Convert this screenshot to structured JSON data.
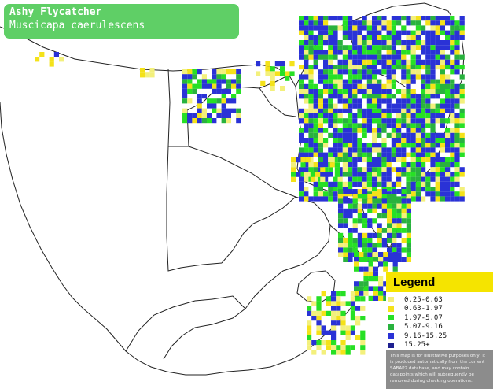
{
  "title": {
    "common_name": "Ashy Flycatcher",
    "scientific_name": "Muscicapa caerulescens"
  },
  "legend": {
    "heading": "Legend",
    "items": [
      {
        "label": "0.25-0.63",
        "color": "#f3f07c"
      },
      {
        "label": "0.63-1.97",
        "color": "#f4e219"
      },
      {
        "label": "1.97-5.07",
        "color": "#27e025"
      },
      {
        "label": "5.07-9.16",
        "color": "#29b23e"
      },
      {
        "label": "9.16-15.25",
        "color": "#2a32d6"
      },
      {
        "label": "15.25+",
        "color": "#1e2090"
      }
    ],
    "note": "This map is for illustrative purposes only; it is produced automatically from the current SABAP2 database, and may contain datapoints which will subsequently be removed during checking operations."
  }
}
